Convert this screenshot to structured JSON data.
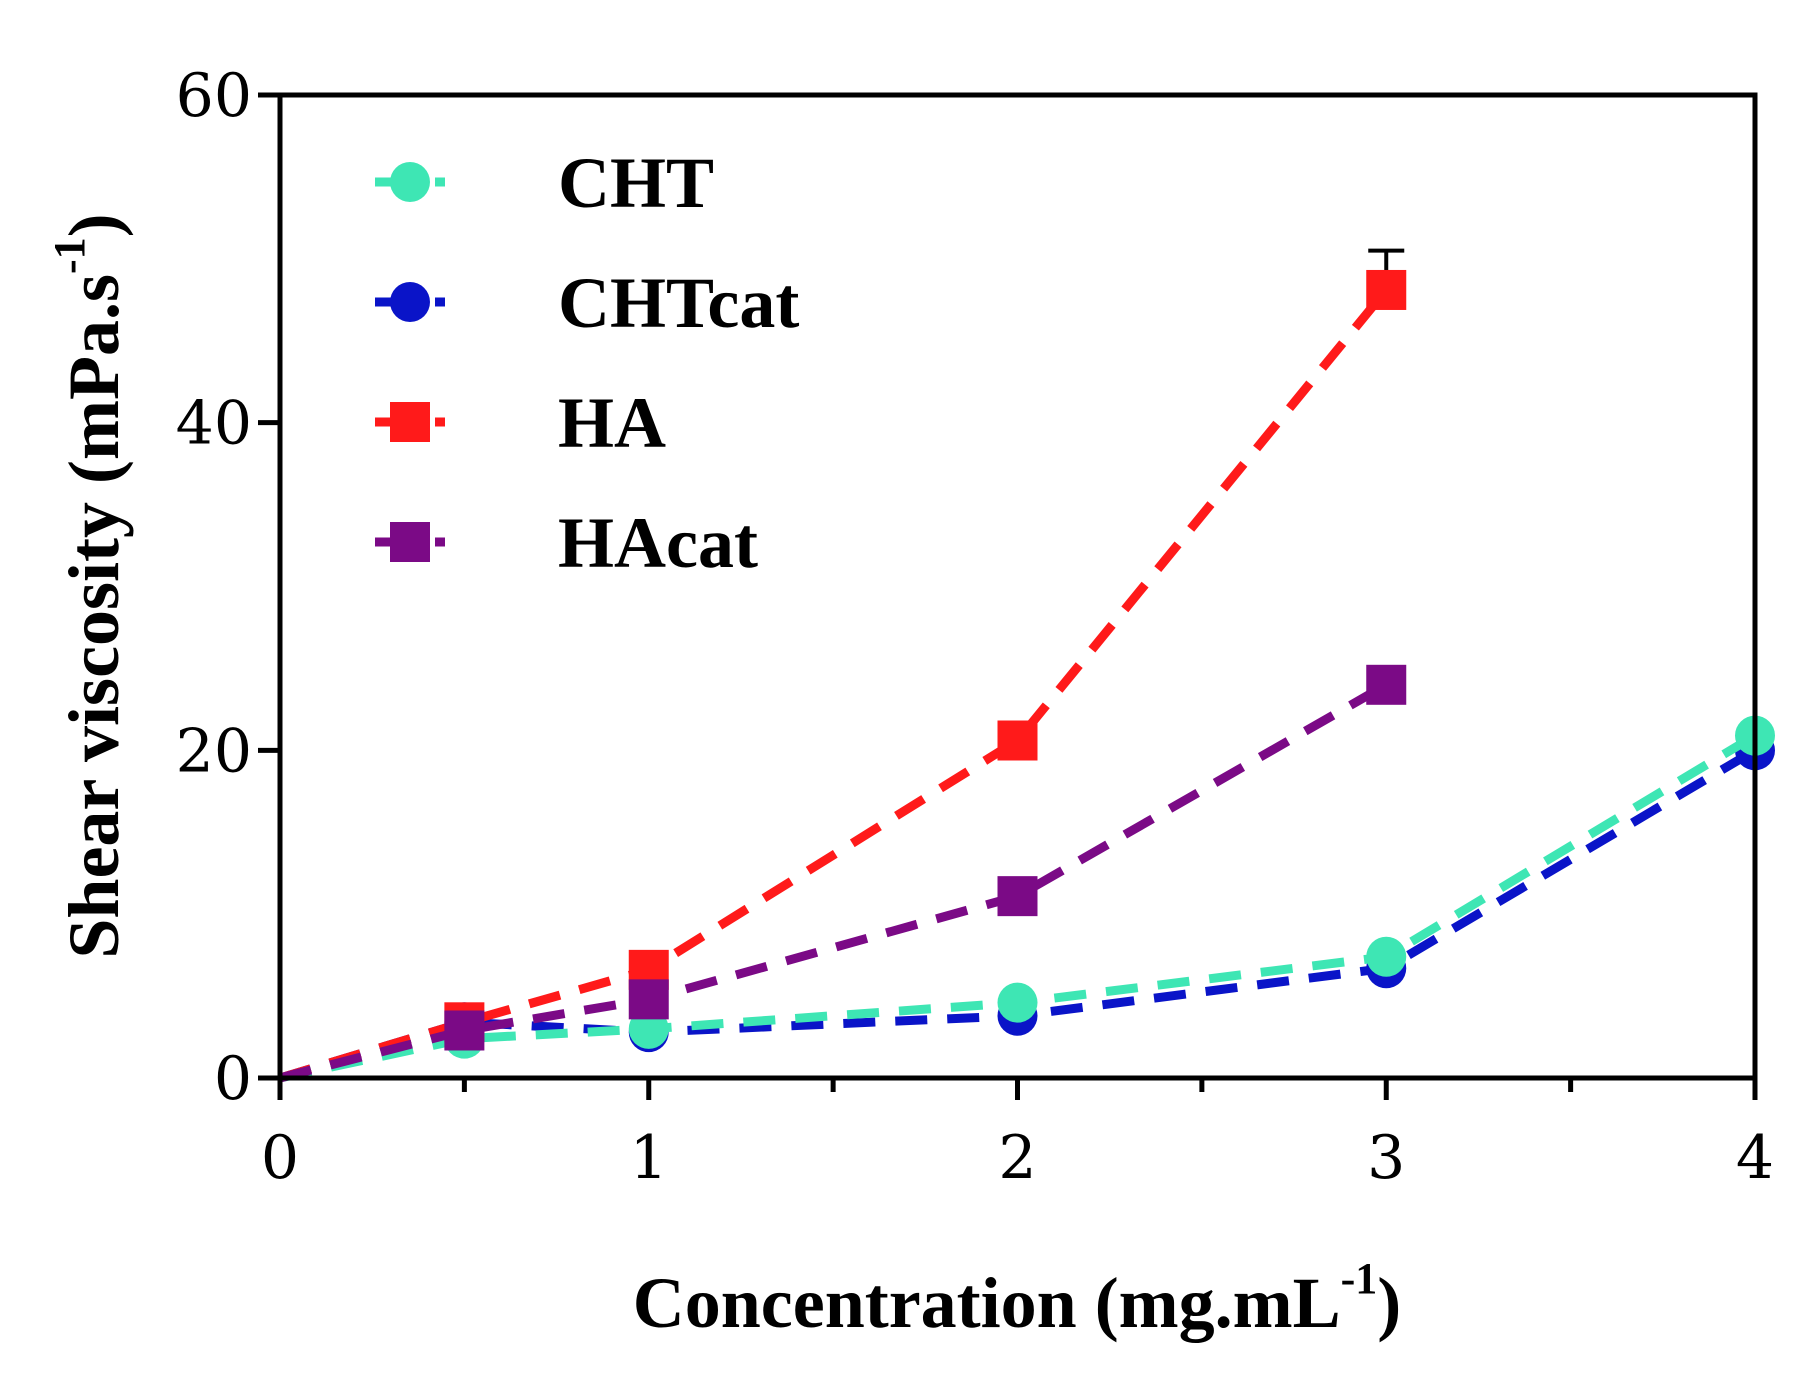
{
  "chart_data": {
    "type": "line",
    "xlabel": "Concentration (mg.mL",
    "xlabel_sup": "-1",
    "xlabel_end": ")",
    "ylabel": "Shear viscosity (mPa.s",
    "ylabel_sup": "-1",
    "ylabel_end": ")",
    "xlim": [
      0,
      4
    ],
    "ylim": [
      0,
      60
    ],
    "x_ticks": [
      0,
      1,
      2,
      3,
      4
    ],
    "x_minor_ticks": [
      0.5,
      1.5,
      2.5,
      3.5
    ],
    "y_ticks": [
      0,
      20,
      40,
      60
    ],
    "legend_position": "top-left",
    "series": [
      {
        "name": "CHTcat",
        "color": "#0a14c8",
        "marker": "circle",
        "x": [
          0,
          0.5,
          1,
          2,
          3,
          4
        ],
        "y": [
          0,
          3.4,
          2.8,
          3.8,
          6.7,
          20.0
        ]
      },
      {
        "name": "CHT",
        "color": "#3ee6b4",
        "marker": "circle",
        "x": [
          0,
          0.5,
          1,
          2,
          3,
          4
        ],
        "y": [
          0,
          2.4,
          3.0,
          4.6,
          7.4,
          20.9
        ]
      },
      {
        "name": "HA",
        "color": "#ff1a1a",
        "marker": "square",
        "x": [
          0,
          0.5,
          1,
          2,
          3
        ],
        "y": [
          0,
          3.4,
          6.6,
          20.6,
          48.1
        ],
        "error": [
          0,
          0,
          0,
          0,
          2.4
        ]
      },
      {
        "name": "HAcat",
        "color": "#7b0a86",
        "marker": "square",
        "x": [
          0,
          0.5,
          1,
          2,
          3
        ],
        "y": [
          0,
          2.9,
          4.8,
          11.1,
          24.0
        ]
      }
    ],
    "legend_order": [
      "CHT",
      "CHTcat",
      "HA",
      "HAcat"
    ]
  }
}
